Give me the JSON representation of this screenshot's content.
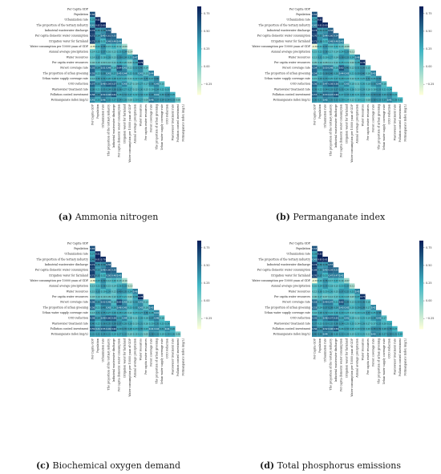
{
  "variables_a": [
    "Per Capita GDP",
    "Population",
    "Urbanization rate",
    "The proportion of the tertiary industry",
    "Industrial wastewater discharge",
    "Per capita domestic water consumption",
    "Irrigation water for farmland",
    "Water consumption per 10000 yuan of GDP",
    "Annual average precipitation",
    "Water resources",
    "Per capita water resources",
    "Forest coverage rate",
    "The proportion of urban greening",
    "Urban water supply coverage rate",
    "COD reduction",
    "Wastewater treatment rate",
    "Pollution control investment",
    "Permanganate index (mg/L)"
  ],
  "variables_c": [
    "Per Capita GDP",
    "Population",
    "Urbanization rate",
    "The proportion of the tertiary industry",
    "Industrial wastewater discharge",
    "Per capita domestic water consumption",
    "Irrigation water for farmland",
    "Water consumption per 10000 yuan of GDP",
    "Annual average precipitation",
    "Water resources",
    "Per capita water resources",
    "Forest coverage rate",
    "The proportion of urban greening",
    "Urban water supply coverage rate",
    "COD reduction",
    "Wastewater treatment rate",
    "Pollution control investment",
    "Permanganate index (mg/L)"
  ],
  "variables_d": [
    "Per Capita GDP",
    "Population",
    "Urbanization rate",
    "The proportion of the tertiary industry",
    "Industrial wastewater discharge",
    "Per capita domestic water consumption",
    "Irrigation water for farmland",
    "Water consumption per 10000 yuan of GDP",
    "Annual average precipitation",
    "Water resources",
    "Per capita water resources",
    "Forest coverage rate",
    "The proportion of urban greening",
    "Urban water supply coverage rate",
    "COD reduction",
    "Wastewater treatment rate",
    "Pollution control investment",
    "Permanganate index (mg/L)"
  ],
  "chart_data": [
    {
      "type": "heatmap",
      "caption_letter": "(a)",
      "caption_text": "Ammonia nitrogen",
      "variables_key": "variables_a",
      "colorbar_ticks": [
        0.75,
        0.5,
        0.25,
        0.0,
        -0.25
      ],
      "vmin": -0.4,
      "vmax": 0.85,
      "colors": {
        "low": "#ffffd9",
        "mid": "#41b6c4",
        "high": "#081d58"
      },
      "values": [
        [],
        [
          0.66
        ],
        [
          0.25,
          0.82
        ],
        [
          0.41,
          0.82,
          0.8
        ],
        [
          0.72,
          0.35,
          0.38,
          0.59
        ],
        [
          0.71,
          0.34,
          0.45,
          0.61,
          0.55
        ],
        [
          0.72,
          0.36,
          0.21,
          0.49,
          0.49,
          0.44
        ],
        [
          -0.35,
          0.22,
          0.38,
          0.15,
          0.21,
          0.12,
          -0.09
        ],
        [
          0.14,
          0.22,
          0.37,
          0.16,
          0.13,
          0.25,
          0.34,
          -0.14
        ],
        [
          0.14,
          0.32,
          0.18,
          0.28,
          0.13,
          0.39,
          0.34,
          0.25,
          0.47
        ],
        [
          0.04,
          0.15,
          0.09,
          0.1,
          0.11,
          0.26,
          0.2,
          0.01,
          0.29,
          0.79
        ],
        [
          0.55,
          0.34,
          0.51,
          0.49,
          0.19,
          0.64,
          0.41,
          0.11,
          0.32,
          0.4,
          0.14
        ],
        [
          0.55,
          0.22,
          0.39,
          0.41,
          0.27,
          0.45,
          0.44,
          0.22,
          0.31,
          0.41,
          0.15,
          0.44
        ],
        [
          0.14,
          0.3,
          0.34,
          0.26,
          0.28,
          0.27,
          0.25,
          0.11,
          0.22,
          0.26,
          0.35,
          0.27,
          0.4
        ],
        [
          0.57,
          0.33,
          0.48,
          0.59,
          0.57,
          0.31,
          0.43,
          0.17,
          0.1,
          0.27,
          0.17,
          0.36,
          0.45,
          0.15
        ],
        [
          0.39,
          0.21,
          0.35,
          0.34,
          0.38,
          0.36,
          0.27,
          0.27,
          0.12,
          0.3,
          0.15,
          0.19,
          0.34,
          0.22,
          0.25
        ],
        [
          0.58,
          0.4,
          0.54,
          0.48,
          0.61,
          0.28,
          0.34,
          0.27,
          0.22,
          0.34,
          0.22,
          0.4,
          0.41,
          0.3,
          0.4,
          0.25
        ],
        [
          0.41,
          0.25,
          0.46,
          0.32,
          0.27,
          0.34,
          0.28,
          0.08,
          0.2,
          0.27,
          0.09,
          0.46,
          0.37,
          0.34,
          0.34,
          0.33,
          0.06
        ]
      ]
    },
    {
      "type": "heatmap",
      "caption_letter": "(b)",
      "caption_text": "Permanganate index",
      "variables": [
        "Per Capita GDP",
        "Population",
        "Urbanization rate",
        "The proportion of the tertiary industry",
        "Industrial wastewater discharge",
        "Per capita domestic water consumption",
        "Irrigation water for farmland",
        "Water consumption per 10000 yuan of GDP",
        "Annual average precipitation",
        "Water resources",
        "Per capita water resources",
        "Forest coverage rate",
        "The proportion of urban greening",
        "Urban water supply coverage rate",
        "COD reduction",
        "Wastewater treatment rate",
        "Pollution control investment",
        "Permanganate index (mg/L)"
      ],
      "colorbar_ticks": [
        0.75,
        0.5,
        0.25,
        0.0,
        -0.25
      ],
      "vmin": -0.4,
      "vmax": 0.85,
      "colors": {
        "low": "#ffffd9",
        "mid": "#41b6c4",
        "high": "#081d58"
      },
      "values": [
        [],
        [
          0.64
        ],
        [
          0.29,
          0.82
        ],
        [
          0.42,
          0.81,
          0.8
        ],
        [
          0.73,
          0.34,
          0.37,
          0.58
        ],
        [
          0.7,
          0.35,
          0.44,
          0.6,
          0.54
        ],
        [
          0.71,
          0.36,
          0.22,
          0.48,
          0.48,
          0.43
        ],
        [
          -0.34,
          0.21,
          0.37,
          0.16,
          0.22,
          0.13,
          -0.08
        ],
        [
          0.15,
          0.23,
          0.36,
          0.17,
          0.14,
          0.24,
          0.33,
          -0.13
        ],
        [
          0.13,
          0.31,
          0.19,
          0.27,
          0.14,
          0.38,
          0.33,
          0.24,
          0.46
        ],
        [
          0.05,
          0.16,
          0.08,
          0.11,
          0.12,
          0.25,
          0.19,
          0.02,
          0.28,
          0.78
        ],
        [
          0.54,
          0.33,
          0.5,
          0.48,
          0.2,
          0.63,
          0.4,
          0.12,
          0.31,
          0.39,
          0.15
        ],
        [
          0.54,
          0.23,
          0.38,
          0.4,
          0.28,
          0.44,
          0.43,
          0.21,
          0.3,
          0.4,
          0.16,
          0.43
        ],
        [
          0.15,
          0.29,
          0.33,
          0.25,
          0.27,
          0.28,
          0.24,
          0.12,
          0.21,
          0.25,
          0.34,
          0.26,
          0.39
        ],
        [
          0.56,
          0.32,
          0.47,
          0.58,
          0.56,
          0.3,
          0.42,
          0.18,
          0.11,
          0.26,
          0.18,
          0.35,
          0.44,
          0.16
        ],
        [
          0.38,
          0.22,
          0.34,
          0.33,
          0.37,
          0.35,
          0.26,
          0.26,
          0.13,
          0.29,
          0.16,
          0.18,
          0.33,
          0.21,
          0.24
        ],
        [
          0.57,
          0.39,
          0.53,
          0.47,
          0.6,
          0.27,
          0.33,
          0.26,
          0.21,
          0.33,
          0.21,
          0.39,
          0.4,
          0.29,
          0.39,
          0.24
        ],
        [
          0.36,
          0.31,
          0.42,
          0.35,
          0.33,
          0.29,
          0.24,
          0.12,
          0.18,
          0.22,
          0.08,
          0.38,
          0.33,
          0.29,
          0.41,
          0.28,
          0.22
        ]
      ]
    },
    {
      "type": "heatmap",
      "caption_letter": "(c)",
      "caption_text": "Biochemical oxygen demand",
      "variables_key": "variables_c",
      "colorbar_ticks": [
        0.75,
        0.5,
        0.25,
        0.0,
        -0.25
      ],
      "vmin": -0.4,
      "vmax": 0.85,
      "colors": {
        "low": "#ffffd9",
        "mid": "#41b6c4",
        "high": "#081d58"
      },
      "values": [
        [],
        [
          0.65
        ],
        [
          0.27,
          0.81
        ],
        [
          0.4,
          0.81,
          0.79
        ],
        [
          0.71,
          0.36,
          0.39,
          0.58
        ],
        [
          0.7,
          0.33,
          0.46,
          0.6,
          0.56
        ],
        [
          0.71,
          0.35,
          0.22,
          0.5,
          0.48,
          0.45
        ],
        [
          -0.36,
          0.23,
          0.39,
          0.14,
          0.2,
          0.13,
          -0.1
        ],
        [
          0.13,
          0.21,
          0.36,
          0.15,
          0.14,
          0.26,
          0.33,
          -0.15
        ],
        [
          0.15,
          0.33,
          0.19,
          0.29,
          0.12,
          0.4,
          0.35,
          0.24,
          0.46
        ],
        [
          0.03,
          0.14,
          0.1,
          0.09,
          0.12,
          0.27,
          0.21,
          0.02,
          0.3,
          0.78
        ],
        [
          0.56,
          0.35,
          0.52,
          0.48,
          0.18,
          0.65,
          0.42,
          0.12,
          0.33,
          0.41,
          0.13
        ],
        [
          0.56,
          0.21,
          0.4,
          0.42,
          0.26,
          0.46,
          0.45,
          0.23,
          0.32,
          0.42,
          0.16,
          0.45
        ],
        [
          0.13,
          0.31,
          0.35,
          0.27,
          0.29,
          0.28,
          0.26,
          0.12,
          0.23,
          0.27,
          0.36,
          0.28,
          0.41
        ],
        [
          0.58,
          0.34,
          0.49,
          0.6,
          0.58,
          0.32,
          0.44,
          0.18,
          0.11,
          0.28,
          0.18,
          0.37,
          0.46,
          0.16
        ],
        [
          0.4,
          0.22,
          0.36,
          0.35,
          0.39,
          0.37,
          0.28,
          0.28,
          0.13,
          0.31,
          0.16,
          0.2,
          0.35,
          0.23,
          0.26
        ],
        [
          0.59,
          0.41,
          0.55,
          0.49,
          0.62,
          0.29,
          0.35,
          0.28,
          0.23,
          0.35,
          0.23,
          0.41,
          0.42,
          0.31,
          0.41,
          0.26
        ],
        [
          0.31,
          0.31,
          0.34,
          0.31,
          0.24,
          0.27,
          0.32,
          0.1,
          0.15,
          0.21,
          0.05,
          0.38,
          0.33,
          0.19,
          0.29,
          0.26,
          0.06
        ]
      ]
    },
    {
      "type": "heatmap",
      "caption_letter": "(d)",
      "caption_text": "Total phosphorus emissions",
      "variables_key": "variables_d",
      "colorbar_ticks": [
        0.75,
        0.5,
        0.25,
        0.0,
        -0.25
      ],
      "vmin": -0.4,
      "vmax": 0.85,
      "colors": {
        "low": "#ffffd9",
        "mid": "#41b6c4",
        "high": "#081d58"
      },
      "values": [
        [],
        [
          0.63
        ],
        [
          0.28,
          0.83
        ],
        [
          0.43,
          0.83,
          0.81
        ],
        [
          0.74,
          0.36,
          0.36,
          0.57
        ],
        [
          0.69,
          0.36,
          0.43,
          0.59,
          0.53
        ],
        [
          0.7,
          0.37,
          0.23,
          0.47,
          0.47,
          0.42
        ],
        [
          -0.33,
          0.2,
          0.36,
          0.17,
          0.23,
          0.14,
          -0.07
        ],
        [
          0.16,
          0.24,
          0.35,
          0.18,
          0.15,
          0.23,
          0.32,
          -0.12
        ],
        [
          0.12,
          0.3,
          0.2,
          0.26,
          0.15,
          0.37,
          0.32,
          0.23,
          0.45
        ],
        [
          0.06,
          0.17,
          0.07,
          0.12,
          0.13,
          0.24,
          0.18,
          0.03,
          0.27,
          0.77
        ],
        [
          0.53,
          0.32,
          0.49,
          0.47,
          0.21,
          0.62,
          0.39,
          0.13,
          0.3,
          0.38,
          0.16
        ],
        [
          0.53,
          0.24,
          0.37,
          0.39,
          0.29,
          0.43,
          0.42,
          0.2,
          0.29,
          0.39,
          0.17,
          0.42
        ],
        [
          0.16,
          0.28,
          0.32,
          0.24,
          0.26,
          0.29,
          0.23,
          0.13,
          0.2,
          0.24,
          0.33,
          0.25,
          0.38
        ],
        [
          0.55,
          0.31,
          0.46,
          0.57,
          0.55,
          0.29,
          0.41,
          0.19,
          0.12,
          0.25,
          0.19,
          0.34,
          0.43,
          0.17
        ],
        [
          0.37,
          0.23,
          0.33,
          0.32,
          0.36,
          0.34,
          0.25,
          0.25,
          0.14,
          0.28,
          0.17,
          0.17,
          0.32,
          0.2,
          0.23
        ],
        [
          0.56,
          0.38,
          0.52,
          0.46,
          0.59,
          0.26,
          0.32,
          0.25,
          0.2,
          0.32,
          0.2,
          0.38,
          0.39,
          0.28,
          0.38,
          0.23
        ],
        [
          0.4,
          0.36,
          0.44,
          0.38,
          0.3,
          0.33,
          0.29,
          0.15,
          0.22,
          0.25,
          0.11,
          0.43,
          0.36,
          0.27,
          0.39,
          0.31,
          0.24
        ]
      ]
    }
  ]
}
